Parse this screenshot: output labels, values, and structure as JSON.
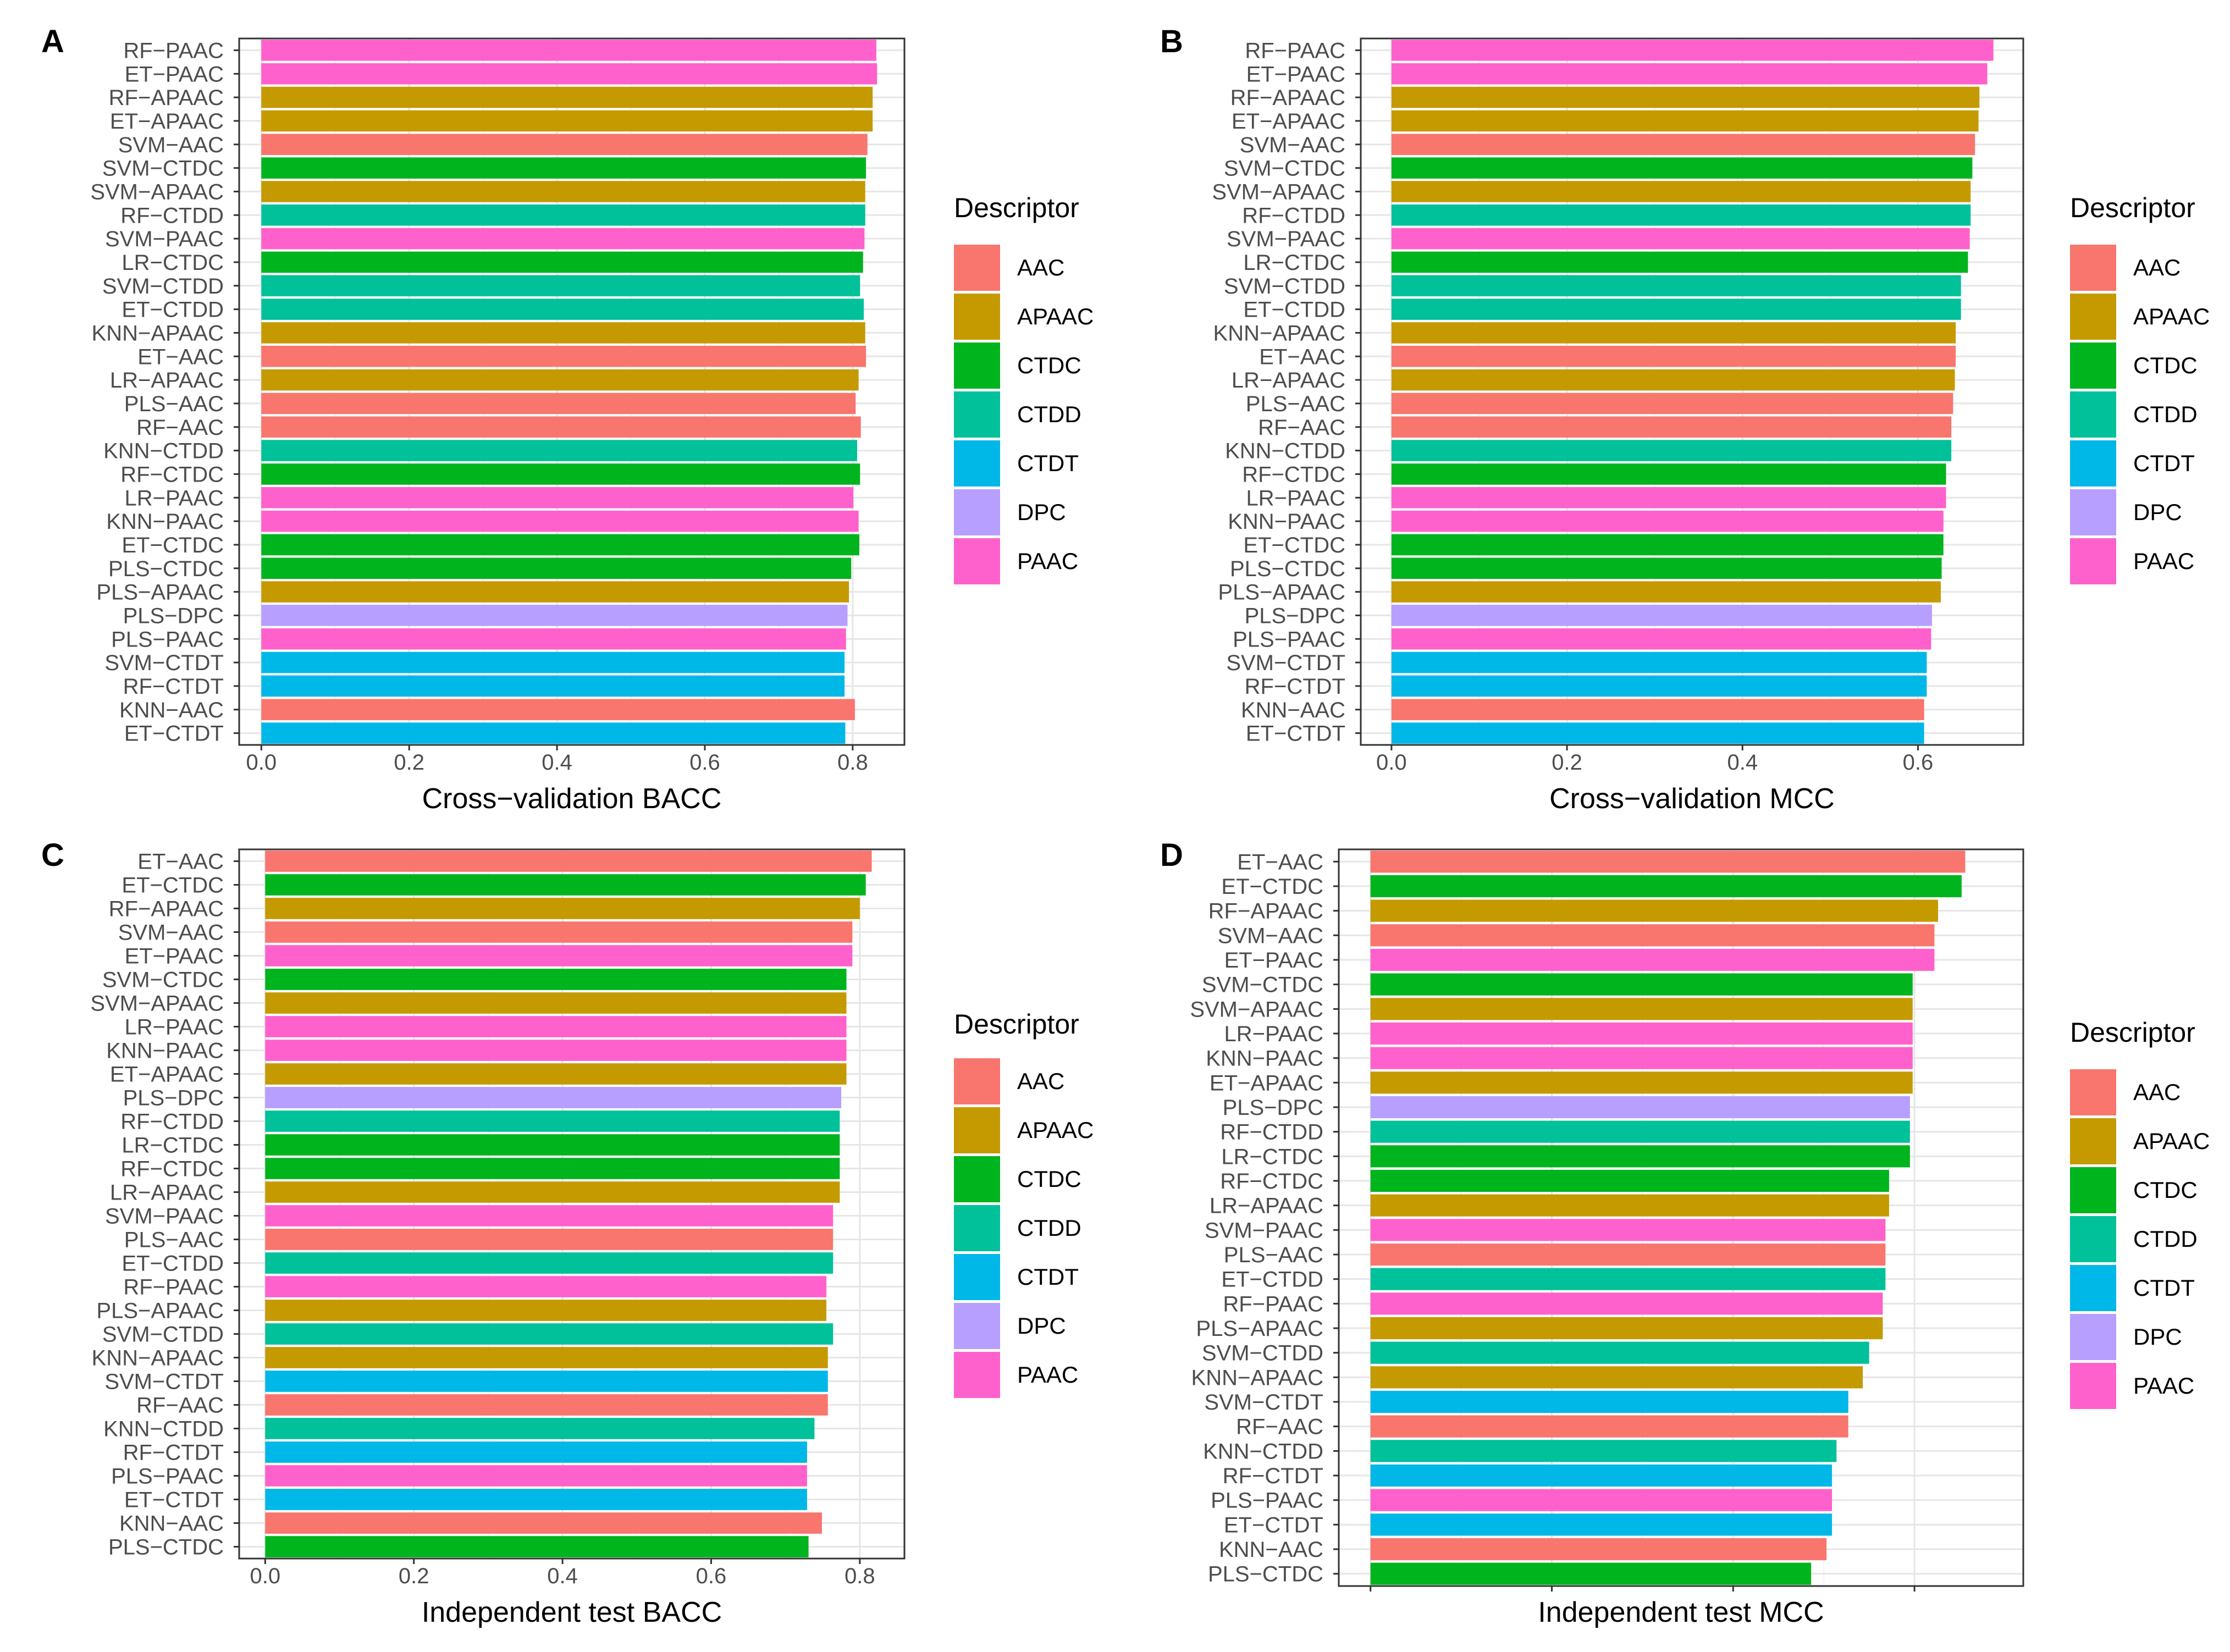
{
  "descriptor_colors": {
    "AAC": "#F8766D",
    "APAAC": "#C49A00",
    "CTDC": "#00B41E",
    "CTDD": "#00C19A",
    "CTDT": "#00B8E7",
    "DPC": "#B79FFF",
    "PAAC": "#FF61CC"
  },
  "chart_data": [
    {
      "panel": "A",
      "type": "bar",
      "orientation": "horizontal",
      "xlabel": "Cross−validation BACC",
      "xlim": [
        -0.03,
        0.87
      ],
      "xticks": [
        "0.0",
        "0.2",
        "0.4",
        "0.6",
        "0.8"
      ],
      "xtick_values": [
        0,
        0.2,
        0.4,
        0.6,
        0.8
      ],
      "grid": true,
      "legend": {
        "title": "Descriptor",
        "position": "right",
        "entries": [
          "AAC",
          "APAAC",
          "CTDC",
          "CTDD",
          "CTDT",
          "DPC",
          "PAAC"
        ]
      },
      "categories": [
        "RF−PAAC",
        "ET−PAAC",
        "RF−APAAC",
        "ET−APAAC",
        "SVM−AAC",
        "SVM−CTDC",
        "SVM−APAAC",
        "RF−CTDD",
        "SVM−PAAC",
        "LR−CTDC",
        "SVM−CTDD",
        "ET−CTDD",
        "KNN−APAAC",
        "ET−AAC",
        "LR−APAAC",
        "PLS−AAC",
        "RF−AAC",
        "KNN−CTDD",
        "RF−CTDC",
        "LR−PAAC",
        "KNN−PAAC",
        "ET−CTDC",
        "PLS−CTDC",
        "PLS−APAAC",
        "PLS−DPC",
        "PLS−PAAC",
        "SVM−CTDT",
        "RF−CTDT",
        "KNN−AAC",
        "ET−CTDT"
      ],
      "descriptors": [
        "PAAC",
        "PAAC",
        "APAAC",
        "APAAC",
        "AAC",
        "CTDC",
        "APAAC",
        "CTDD",
        "PAAC",
        "CTDC",
        "CTDD",
        "CTDD",
        "APAAC",
        "AAC",
        "APAAC",
        "AAC",
        "AAC",
        "CTDD",
        "CTDC",
        "PAAC",
        "PAAC",
        "CTDC",
        "CTDC",
        "APAAC",
        "DPC",
        "PAAC",
        "CTDT",
        "CTDT",
        "AAC",
        "CTDT"
      ],
      "values": [
        0.832,
        0.833,
        0.827,
        0.827,
        0.82,
        0.818,
        0.817,
        0.817,
        0.816,
        0.814,
        0.81,
        0.815,
        0.817,
        0.818,
        0.808,
        0.804,
        0.811,
        0.806,
        0.81,
        0.801,
        0.808,
        0.809,
        0.798,
        0.795,
        0.793,
        0.791,
        0.789,
        0.789,
        0.803,
        0.79
      ]
    },
    {
      "panel": "B",
      "type": "bar",
      "orientation": "horizontal",
      "xlabel": "Cross−validation MCC",
      "xlim": [
        -0.035,
        0.72
      ],
      "xticks": [
        "0.0",
        "0.2",
        "0.4",
        "0.6"
      ],
      "xtick_values": [
        0,
        0.2,
        0.4,
        0.6
      ],
      "grid": true,
      "legend": {
        "title": "Descriptor",
        "position": "right",
        "entries": [
          "AAC",
          "APAAC",
          "CTDC",
          "CTDD",
          "CTDT",
          "DPC",
          "PAAC"
        ]
      },
      "categories": [
        "RF−PAAC",
        "ET−PAAC",
        "RF−APAAC",
        "ET−APAAC",
        "SVM−AAC",
        "SVM−CTDC",
        "SVM−APAAC",
        "RF−CTDD",
        "SVM−PAAC",
        "LR−CTDC",
        "SVM−CTDD",
        "ET−CTDD",
        "KNN−APAAC",
        "ET−AAC",
        "LR−APAAC",
        "PLS−AAC",
        "RF−AAC",
        "KNN−CTDD",
        "RF−CTDC",
        "LR−PAAC",
        "KNN−PAAC",
        "ET−CTDC",
        "PLS−CTDC",
        "PLS−APAAC",
        "PLS−DPC",
        "PLS−PAAC",
        "SVM−CTDT",
        "RF−CTDT",
        "KNN−AAC",
        "ET−CTDT"
      ],
      "descriptors": [
        "PAAC",
        "PAAC",
        "APAAC",
        "APAAC",
        "AAC",
        "CTDC",
        "APAAC",
        "CTDD",
        "PAAC",
        "CTDC",
        "CTDD",
        "CTDD",
        "APAAC",
        "AAC",
        "APAAC",
        "AAC",
        "AAC",
        "CTDD",
        "CTDC",
        "PAAC",
        "PAAC",
        "CTDC",
        "CTDC",
        "APAAC",
        "DPC",
        "PAAC",
        "CTDT",
        "CTDT",
        "AAC",
        "CTDT"
      ],
      "values": [
        0.686,
        0.679,
        0.67,
        0.669,
        0.665,
        0.662,
        0.66,
        0.66,
        0.659,
        0.657,
        0.649,
        0.649,
        0.643,
        0.643,
        0.642,
        0.64,
        0.638,
        0.638,
        0.632,
        0.632,
        0.629,
        0.629,
        0.627,
        0.626,
        0.616,
        0.615,
        0.61,
        0.61,
        0.607,
        0.607
      ]
    },
    {
      "panel": "C",
      "type": "bar",
      "orientation": "horizontal",
      "xlabel": "Independent test BACC",
      "xlim": [
        -0.035,
        0.86
      ],
      "xticks": [
        "0.0",
        "0.2",
        "0.4",
        "0.6",
        "0.8"
      ],
      "xtick_values": [
        0,
        0.2,
        0.4,
        0.6,
        0.8
      ],
      "grid": true,
      "legend": {
        "title": "Descriptor",
        "position": "right",
        "entries": [
          "AAC",
          "APAAC",
          "CTDC",
          "CTDD",
          "CTDT",
          "DPC",
          "PAAC"
        ]
      },
      "categories": [
        "ET−AAC",
        "ET−CTDC",
        "RF−APAAC",
        "SVM−AAC",
        "ET−PAAC",
        "SVM−CTDC",
        "SVM−APAAC",
        "LR−PAAC",
        "KNN−PAAC",
        "ET−APAAC",
        "PLS−DPC",
        "RF−CTDD",
        "LR−CTDC",
        "RF−CTDC",
        "LR−APAAC",
        "SVM−PAAC",
        "PLS−AAC",
        "ET−CTDD",
        "RF−PAAC",
        "PLS−APAAC",
        "SVM−CTDD",
        "KNN−APAAC",
        "SVM−CTDT",
        "RF−AAC",
        "KNN−CTDD",
        "RF−CTDT",
        "PLS−PAAC",
        "ET−CTDT",
        "KNN−AAC",
        "PLS−CTDC"
      ],
      "descriptors": [
        "AAC",
        "CTDC",
        "APAAC",
        "AAC",
        "PAAC",
        "CTDC",
        "APAAC",
        "PAAC",
        "PAAC",
        "APAAC",
        "DPC",
        "CTDD",
        "CTDC",
        "CTDC",
        "APAAC",
        "PAAC",
        "AAC",
        "CTDD",
        "PAAC",
        "APAAC",
        "CTDD",
        "APAAC",
        "CTDT",
        "AAC",
        "CTDD",
        "CTDT",
        "PAAC",
        "CTDT",
        "AAC",
        "CTDC"
      ],
      "values": [
        0.816,
        0.808,
        0.8,
        0.79,
        0.79,
        0.782,
        0.782,
        0.782,
        0.782,
        0.782,
        0.775,
        0.773,
        0.773,
        0.773,
        0.773,
        0.764,
        0.764,
        0.764,
        0.755,
        0.755,
        0.764,
        0.757,
        0.757,
        0.757,
        0.739,
        0.729,
        0.729,
        0.729,
        0.749,
        0.731
      ]
    },
    {
      "panel": "D",
      "type": "bar",
      "orientation": "horizontal",
      "xlabel": "Independent test MCC",
      "xlim": [
        -0.035,
        0.72
      ],
      "xticks": [
        "",
        "",
        "",
        ""
      ],
      "xtick_values": [
        0,
        0.2,
        0.4,
        0.6
      ],
      "grid": true,
      "legend": {
        "title": "Descriptor",
        "position": "right",
        "entries": [
          "AAC",
          "APAAC",
          "CTDC",
          "CTDD",
          "CTDT",
          "DPC",
          "PAAC"
        ]
      },
      "categories": [
        "ET−AAC",
        "ET−CTDC",
        "RF−APAAC",
        "SVM−AAC",
        "ET−PAAC",
        "SVM−CTDC",
        "SVM−APAAC",
        "LR−PAAC",
        "KNN−PAAC",
        "ET−APAAC",
        "PLS−DPC",
        "RF−CTDD",
        "LR−CTDC",
        "RF−CTDC",
        "LR−APAAC",
        "SVM−PAAC",
        "PLS−AAC",
        "ET−CTDD",
        "RF−PAAC",
        "PLS−APAAC",
        "SVM−CTDD",
        "KNN−APAAC",
        "SVM−CTDT",
        "RF−AAC",
        "KNN−CTDD",
        "RF−CTDT",
        "PLS−PAAC",
        "ET−CTDT",
        "KNN−AAC",
        "PLS−CTDC"
      ],
      "descriptors": [
        "AAC",
        "CTDC",
        "APAAC",
        "AAC",
        "PAAC",
        "CTDC",
        "APAAC",
        "PAAC",
        "PAAC",
        "APAAC",
        "DPC",
        "CTDD",
        "CTDC",
        "CTDC",
        "APAAC",
        "PAAC",
        "AAC",
        "CTDD",
        "PAAC",
        "APAAC",
        "CTDD",
        "APAAC",
        "CTDT",
        "AAC",
        "CTDD",
        "CTDT",
        "PAAC",
        "CTDT",
        "AAC",
        "CTDC"
      ],
      "values": [
        0.656,
        0.652,
        0.626,
        0.622,
        0.622,
        0.598,
        0.598,
        0.598,
        0.598,
        0.598,
        0.595,
        0.595,
        0.595,
        0.572,
        0.572,
        0.568,
        0.568,
        0.568,
        0.565,
        0.565,
        0.55,
        0.543,
        0.527,
        0.527,
        0.514,
        0.509,
        0.509,
        0.509,
        0.503,
        0.486
      ]
    }
  ]
}
